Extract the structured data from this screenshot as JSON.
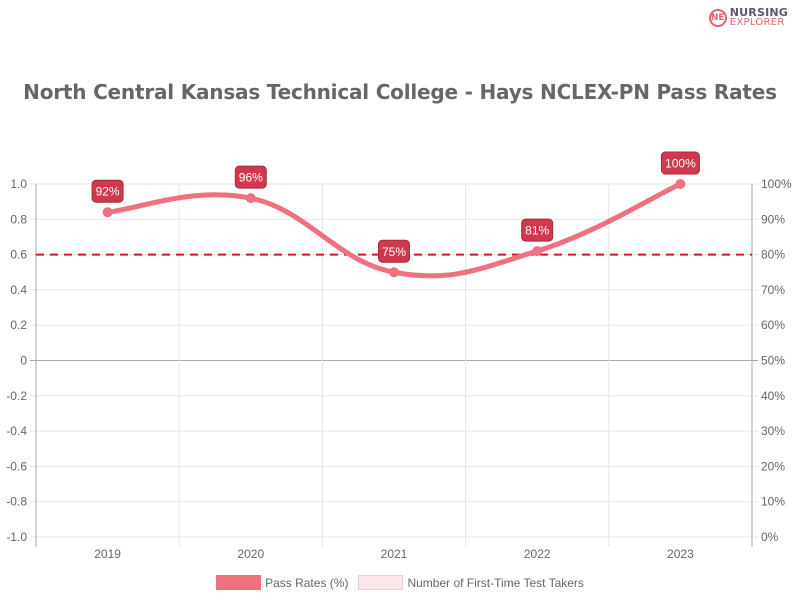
{
  "brand": {
    "line1": "NURSING",
    "line2": "EXPLORER",
    "mark": "NE"
  },
  "chart_data": {
    "type": "line",
    "title": "North Central Kansas Technical College - Hays NCLEX-PN Pass Rates",
    "categories": [
      "2019",
      "2020",
      "2021",
      "2022",
      "2023"
    ],
    "series": [
      {
        "name": "Pass Rates (%)",
        "values": [
          92,
          96,
          75,
          81,
          100
        ],
        "color": "#f07080",
        "axis": "right"
      },
      {
        "name": "Number of First-Time Test Takers",
        "values": [],
        "color": "#fbe6ea",
        "axis": "left"
      }
    ],
    "data_labels": [
      "92%",
      "96%",
      "75%",
      "81%",
      "100%"
    ],
    "left_axis": {
      "ticks": [
        "1.0",
        "0.8",
        "0.6",
        "0.4",
        "0.2",
        "0",
        "-0.2",
        "-0.4",
        "-0.6",
        "-0.8",
        "-1.0"
      ],
      "ylim": [
        -1.0,
        1.0
      ]
    },
    "right_axis": {
      "ticks": [
        "100%",
        "90%",
        "80%",
        "70%",
        "60%",
        "50%",
        "40%",
        "30%",
        "20%",
        "10%",
        "0%"
      ],
      "ylim": [
        0,
        100
      ]
    },
    "reference_line": {
      "value": 80,
      "axis": "right",
      "style": "dashed",
      "color": "#dd1122"
    },
    "grid": true,
    "legend_position": "bottom",
    "xlabel": "",
    "ylabel": ""
  },
  "legend": [
    {
      "label": "Pass Rates (%)",
      "fill": "#f07080",
      "border": "#f07080"
    },
    {
      "label": "Number of First-Time Test Takers",
      "fill": "#fbe6ea",
      "border": "#e8d0d6"
    }
  ]
}
